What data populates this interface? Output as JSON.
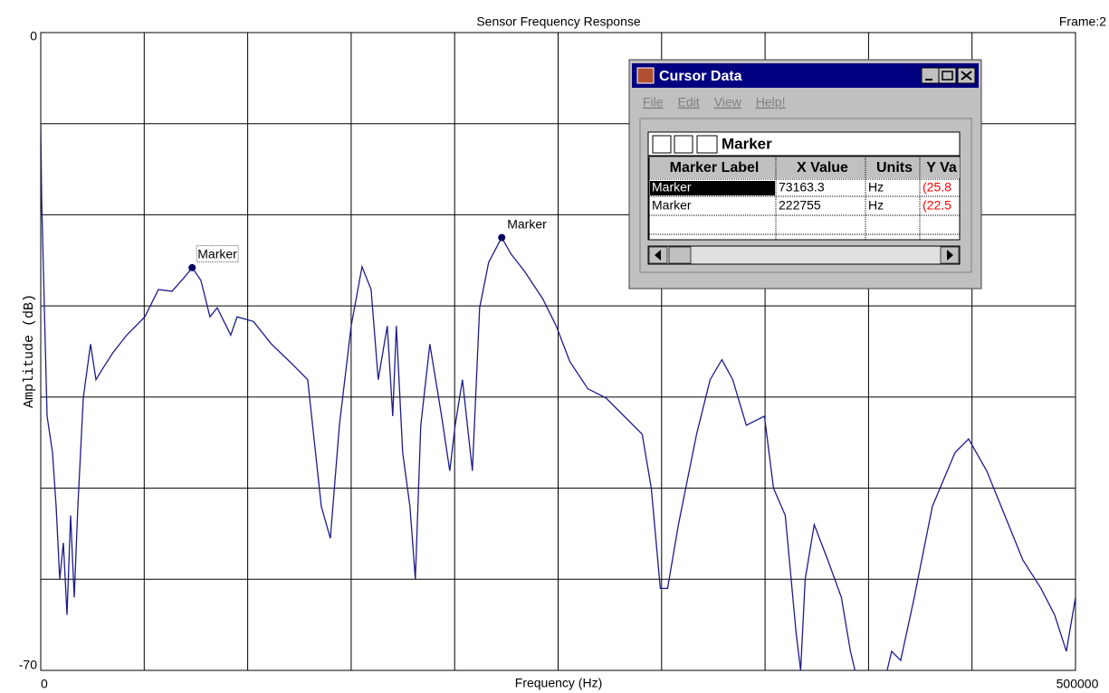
{
  "chart_data": {
    "type": "line",
    "title": "Sensor Frequency Response",
    "frame_label": "Frame:2",
    "x_label": "Frequency (Hz)",
    "y_label": "Amplitude (dB)",
    "xlim": [
      0,
      500000
    ],
    "ylim": [
      -70,
      0
    ],
    "xticks": [
      0,
      500000
    ],
    "yticks": [
      0,
      -70
    ],
    "xgrid": [
      0,
      50000,
      100000,
      150000,
      200000,
      250000,
      300000,
      350000,
      400000,
      450000,
      500000
    ],
    "ygrid": [
      0,
      -10,
      -20,
      -30,
      -40,
      -50,
      -60,
      -70
    ],
    "color": "#1c1c8c",
    "x": [
      0,
      437,
      1312,
      3062,
      5687,
      7437,
      9186,
      10936,
      12686,
      14436,
      16185,
      17935,
      20560,
      24059,
      26683,
      29308,
      34995,
      41556,
      50304,
      56865,
      63427,
      69988,
      73163,
      77366,
      81740,
      85240,
      91801,
      94863,
      102737,
      111486,
      120234,
      128983,
      135544,
      139918,
      144293,
      149979,
      155228,
      159602,
      163101,
      167475,
      170100,
      171850,
      174912,
      178411,
      181036,
      183660,
      188034,
      193721,
      197657,
      200282,
      203782,
      208593,
      212093,
      216467,
      222755,
      227215,
      233777,
      242525,
      249086,
      255648,
      264396,
      273144,
      281893,
      290641,
      295016,
      299390,
      302889,
      308138,
      316886,
      323448,
      329134,
      334383,
      340944,
      349693,
      354067,
      359754,
      365003,
      367190,
      369377,
      373751,
      380313,
      386874,
      391249,
      393436,
      400000,
      408963,
      411150,
      415524,
      422086,
      430834,
      441769,
      448330,
      457079,
      465827,
      474576,
      483324,
      489886,
      495572,
      500000
    ],
    "values": [
      -9.9,
      -18.3,
      -26.2,
      -42.1,
      -46.1,
      -52.0,
      -60.0,
      -56.0,
      -63.9,
      -53.0,
      -62.0,
      -52.0,
      -40.1,
      -34.2,
      -38.1,
      -37.1,
      -35.1,
      -33.2,
      -31.2,
      -28.2,
      -28.4,
      -26.7,
      -25.8,
      -27.2,
      -31.2,
      -30.2,
      -33.2,
      -31.2,
      -31.7,
      -34.2,
      -36.1,
      -38.1,
      -52.0,
      -55.5,
      -43.1,
      -32.2,
      -25.7,
      -28.2,
      -38.1,
      -32.2,
      -42.1,
      -32.2,
      -46.1,
      -52.0,
      -60.0,
      -43.1,
      -34.2,
      -42.1,
      -48.1,
      -43.1,
      -38.1,
      -48.1,
      -30.2,
      -25.2,
      -22.5,
      -24.3,
      -26.2,
      -29.2,
      -32.2,
      -36.1,
      -39.1,
      -40.1,
      -42.1,
      -44.1,
      -50.0,
      -61.0,
      -61.0,
      -54.0,
      -44.1,
      -38.1,
      -35.9,
      -38.1,
      -43.1,
      -42.1,
      -50.0,
      -53.0,
      -65.9,
      -70,
      -60.0,
      -54.0,
      -57.9,
      -62.0,
      -67.9,
      -70,
      null,
      -70,
      -67.9,
      -68.9,
      -62.0,
      -52.0,
      -46.1,
      -44.6,
      -48.1,
      -53.0,
      -57.9,
      -61.0,
      -63.9,
      -67.9,
      -62.0
    ],
    "markers": [
      {
        "label": "Marker",
        "x": 73163.3,
        "y": -25.8
      },
      {
        "label": "Marker",
        "x": 222755,
        "y": -22.5
      }
    ]
  },
  "window": {
    "title": "Cursor Data",
    "menu": [
      "File",
      "Edit",
      "View",
      "Help!"
    ],
    "table_title": "Marker",
    "columns": [
      "Marker Label",
      "X Value",
      "Units",
      "Y Va"
    ],
    "rows": [
      [
        "Marker",
        "73163.3",
        "Hz",
        "(25.8"
      ],
      [
        "Marker",
        "222755",
        "Hz",
        "(22.5"
      ]
    ]
  }
}
